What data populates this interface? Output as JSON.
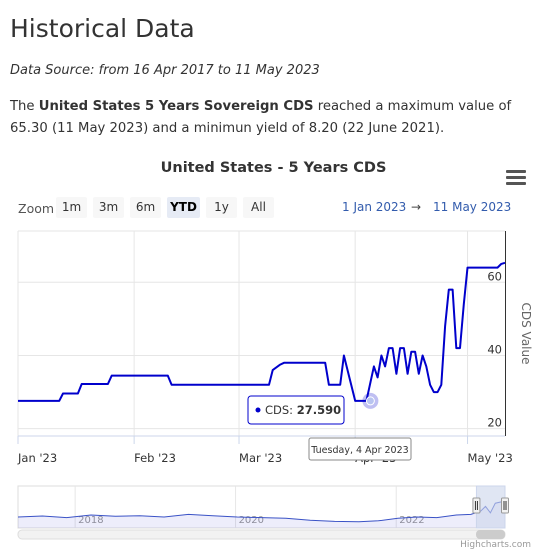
{
  "page": {
    "title": "Historical Data",
    "source_line": "Data Source: from 16 Apr 2017 to 11 May 2023",
    "summary": {
      "prefix": "The ",
      "subject": "United States 5 Years Sovereign CDS",
      "middle": " reached a maximum value of 65.30 (11 May 2023) and a minimun yield of 8.20 (22 June 2021)."
    }
  },
  "range_selector": {
    "zoom_label": "Zoom",
    "buttons": [
      "1m",
      "3m",
      "6m",
      "YTD",
      "1y",
      "All"
    ],
    "active": "YTD",
    "from": "1 Jan 2023",
    "arrow": "→",
    "to": "11 May 2023"
  },
  "tooltip": {
    "series_label": "CDS: ",
    "value": "27.590",
    "date_label": "Tuesday, 4 Apr 2023"
  },
  "credits": "Highcharts.com",
  "colors": {
    "line": "#0000cc",
    "navigator_fill": "#ccd6eb",
    "accent": "#335cad"
  },
  "chart_data": {
    "type": "line",
    "title": "United States - 5 Years CDS",
    "ylabel": "CDS Value",
    "ylim": [
      18,
      74
    ],
    "y_ticks": [
      20,
      40,
      60
    ],
    "x_range": [
      "2023-01-01",
      "2023-05-11"
    ],
    "x_ticks": [
      {
        "date": "2023-01-01",
        "label": "Jan '23"
      },
      {
        "date": "2023-02-01",
        "label": "Feb '23"
      },
      {
        "date": "2023-03-01",
        "label": "Mar '23"
      },
      {
        "date": "2023-04-01",
        "label": "Apr '23"
      },
      {
        "date": "2023-05-01",
        "label": "May '23"
      }
    ],
    "grid": true,
    "series": [
      {
        "x": [
          "2023-01-01",
          "2023-01-12",
          "2023-01-13",
          "2023-01-17",
          "2023-01-18",
          "2023-01-25",
          "2023-01-26",
          "2023-01-31",
          "2023-02-01",
          "2023-02-10",
          "2023-02-11",
          "2023-03-01",
          "2023-03-02",
          "2023-03-09",
          "2023-03-10",
          "2023-03-12",
          "2023-03-13",
          "2023-03-24",
          "2023-03-25",
          "2023-03-27",
          "2023-03-28",
          "2023-03-29",
          "2023-04-01",
          "2023-04-04",
          "2023-04-06",
          "2023-04-07",
          "2023-04-08",
          "2023-04-09",
          "2023-04-10",
          "2023-04-11",
          "2023-04-12",
          "2023-04-13",
          "2023-04-14",
          "2023-04-15",
          "2023-04-16",
          "2023-04-17",
          "2023-04-18",
          "2023-04-19",
          "2023-04-20",
          "2023-04-21",
          "2023-04-22",
          "2023-04-23",
          "2023-04-24",
          "2023-04-25",
          "2023-04-26",
          "2023-04-27",
          "2023-04-28",
          "2023-04-29",
          "2023-04-30",
          "2023-05-01",
          "2023-05-02",
          "2023-05-03",
          "2023-05-04",
          "2023-05-05",
          "2023-05-06",
          "2023-05-07",
          "2023-05-08",
          "2023-05-09",
          "2023-05-10",
          "2023-05-11"
        ],
        "values": [
          27.6,
          27.6,
          29.6,
          29.6,
          32.2,
          32.2,
          34.5,
          34.5,
          34.5,
          34.5,
          32.0,
          32.0,
          32.0,
          32.0,
          36.0,
          37.5,
          38.0,
          38.0,
          32.0,
          32.0,
          32.0,
          40.0,
          27.6,
          27.6,
          37.0,
          34.0,
          40.0,
          37.0,
          42.0,
          42.0,
          35.0,
          42.0,
          42.0,
          35.0,
          41.0,
          41.0,
          35.0,
          40.0,
          37.0,
          32.0,
          30.0,
          30.0,
          32.0,
          48.0,
          58.0,
          58.0,
          42.0,
          42.0,
          54.0,
          64.0,
          64.0,
          64.0,
          64.0,
          64.0,
          64.0,
          64.0,
          64.0,
          64.0,
          65.0,
          65.3
        ]
      }
    ],
    "navigator": {
      "x_ticks": [
        "2018",
        "2020",
        "2022"
      ]
    }
  }
}
